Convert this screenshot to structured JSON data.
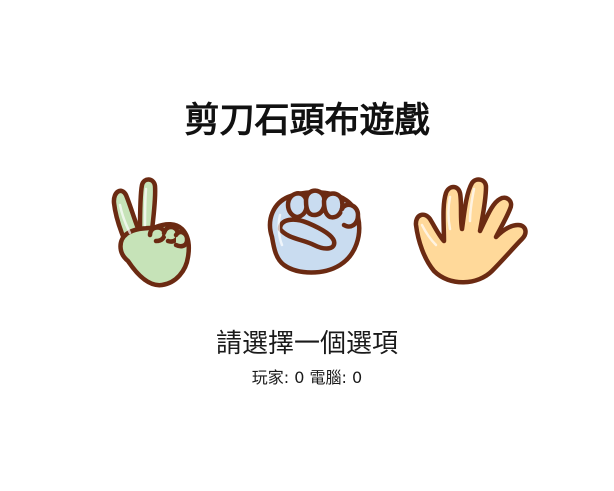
{
  "title": "剪刀石頭布遊戲",
  "choices": [
    {
      "name": "scissors",
      "icon": "scissors-hand-icon",
      "color": "#c6e3b8"
    },
    {
      "name": "rock",
      "icon": "rock-fist-icon",
      "color": "#c9dcf0"
    },
    {
      "name": "paper",
      "icon": "paper-hand-icon",
      "color": "#ffd99a"
    }
  ],
  "message": "請選擇一個選項",
  "score": {
    "player_label": "玩家:",
    "player_value": "0",
    "computer_label": "電腦:",
    "computer_value": "0"
  },
  "colors": {
    "outline": "#6b2a12",
    "title": "#111111"
  }
}
